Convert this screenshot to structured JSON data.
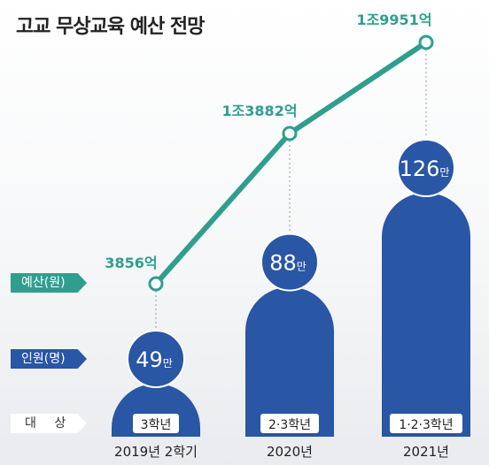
{
  "title": "고교 무상교육 예산 전망",
  "legend": {
    "budget": "예산(원)",
    "students": "인원(명)",
    "target": "대 상"
  },
  "colors": {
    "teal": "#2f9e8f",
    "blue": "#2956a5",
    "text": "#222222"
  },
  "chart_data": {
    "type": "line",
    "title": "고교 무상교육 예산 전망",
    "categories": [
      "2019년 2학기",
      "2020년",
      "2021년"
    ],
    "series": [
      {
        "name": "예산(원)",
        "values": [
          3856,
          13882,
          19951
        ],
        "labels": [
          "3856억",
          "1조3882억",
          "1조9951억"
        ],
        "unit": "억원"
      },
      {
        "name": "인원(명)",
        "values": [
          49,
          88,
          126
        ],
        "labels": [
          "49만",
          "88만",
          "126만"
        ],
        "unit": "만명"
      }
    ],
    "targets": [
      "3학년",
      "2·3학년",
      "1·2·3학년"
    ]
  }
}
